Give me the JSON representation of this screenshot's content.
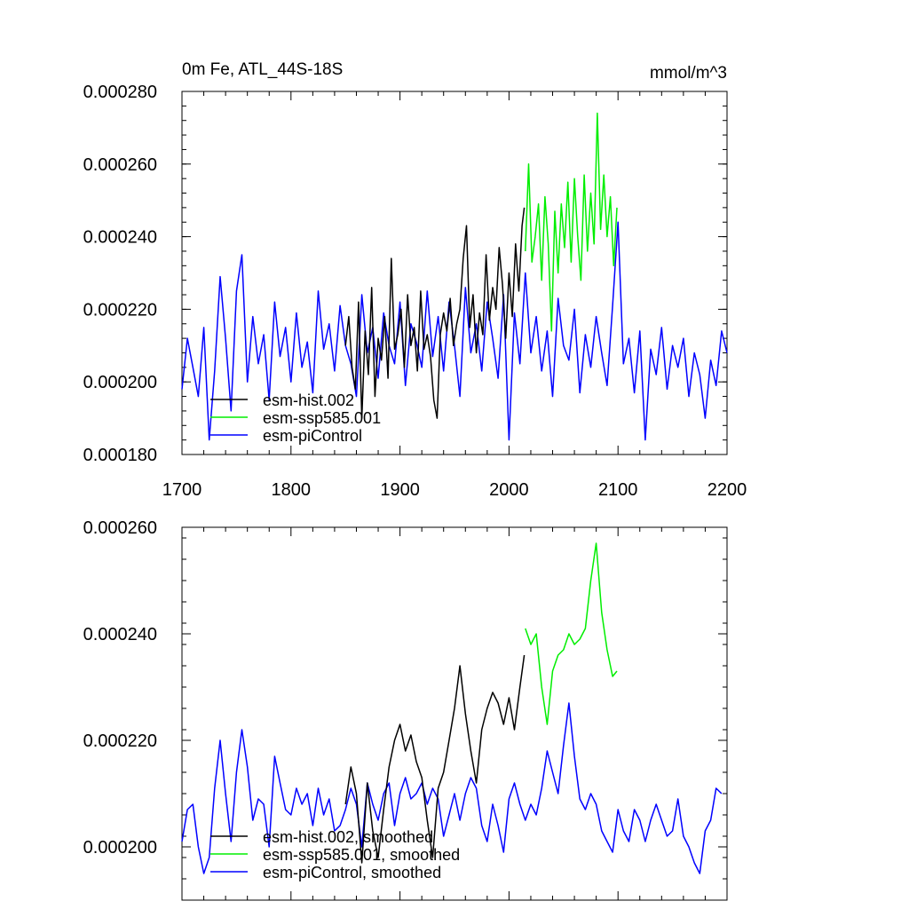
{
  "chart_data": [
    {
      "type": "line",
      "title": "0m Fe, ATL_44S-18S",
      "units": "mmol/m^3",
      "xlim": [
        1700,
        2200
      ],
      "ylim": [
        0.00018,
        0.00028
      ],
      "xticks": [
        "1700",
        "1800",
        "1900",
        "2000",
        "2100",
        "2200"
      ],
      "yticks": [
        "0.000180",
        "0.000200",
        "0.000220",
        "0.000240",
        "0.000260",
        "0.000280"
      ],
      "legend_position": "bottom-left",
      "series": [
        {
          "name": "esm-hist.002",
          "color": "#000000",
          "x": [
            1850,
            1853,
            1856,
            1859,
            1862,
            1865,
            1868,
            1871,
            1874,
            1877,
            1880,
            1883,
            1886,
            1889,
            1892,
            1895,
            1898,
            1901,
            1904,
            1907,
            1910,
            1913,
            1916,
            1919,
            1922,
            1925,
            1928,
            1931,
            1934,
            1937,
            1940,
            1943,
            1946,
            1949,
            1952,
            1955,
            1958,
            1961,
            1964,
            1967,
            1970,
            1973,
            1976,
            1979,
            1982,
            1985,
            1988,
            1991,
            1994,
            1997,
            2000,
            2003,
            2006,
            2009,
            2012,
            2014
          ],
          "values": [
            0.00021,
            0.000218,
            0.000204,
            0.000198,
            0.000222,
            0.00019,
            0.000214,
            0.000202,
            0.000226,
            0.000196,
            0.000212,
            0.000206,
            0.000218,
            0.000201,
            0.000234,
            0.000209,
            0.000213,
            0.00022,
            0.000204,
            0.000224,
            0.00021,
            0.000215,
            0.000203,
            0.000225,
            0.000209,
            0.000213,
            0.000207,
            0.000195,
            0.00019,
            0.000213,
            0.000219,
            0.000214,
            0.000223,
            0.00021,
            0.000216,
            0.00022,
            0.000234,
            0.000243,
            0.000215,
            0.000224,
            0.000208,
            0.000219,
            0.000213,
            0.000235,
            0.000217,
            0.000226,
            0.00022,
            0.000237,
            0.000227,
            0.000212,
            0.00023,
            0.000218,
            0.000238,
            0.000225,
            0.000243,
            0.000248
          ]
        },
        {
          "name": "esm-ssp585.001",
          "color": "#00ee00",
          "x": [
            2015,
            2018,
            2021,
            2024,
            2027,
            2030,
            2033,
            2036,
            2039,
            2042,
            2045,
            2048,
            2051,
            2054,
            2057,
            2060,
            2063,
            2066,
            2069,
            2072,
            2075,
            2078,
            2081,
            2084,
            2087,
            2090,
            2093,
            2096,
            2099
          ],
          "values": [
            0.000236,
            0.00026,
            0.000233,
            0.00024,
            0.000249,
            0.000228,
            0.000251,
            0.000238,
            0.000214,
            0.000247,
            0.00023,
            0.000249,
            0.000237,
            0.000255,
            0.000233,
            0.000256,
            0.00024,
            0.000228,
            0.000257,
            0.000236,
            0.000252,
            0.000238,
            0.000274,
            0.000242,
            0.000257,
            0.00024,
            0.000251,
            0.000232,
            0.000248
          ]
        },
        {
          "name": "esm-piControl",
          "color": "#0000ff",
          "x": [
            1700,
            1705,
            1710,
            1715,
            1720,
            1725,
            1730,
            1735,
            1740,
            1745,
            1750,
            1755,
            1760,
            1765,
            1770,
            1775,
            1780,
            1785,
            1790,
            1795,
            1800,
            1805,
            1810,
            1815,
            1820,
            1825,
            1830,
            1835,
            1840,
            1845,
            1850,
            1855,
            1860,
            1865,
            1870,
            1875,
            1880,
            1885,
            1890,
            1895,
            1900,
            1905,
            1910,
            1915,
            1920,
            1925,
            1930,
            1935,
            1940,
            1945,
            1950,
            1955,
            1960,
            1965,
            1970,
            1975,
            1980,
            1985,
            1990,
            1995,
            2000,
            2005,
            2010,
            2015,
            2020,
            2025,
            2030,
            2035,
            2040,
            2045,
            2050,
            2055,
            2060,
            2065,
            2070,
            2075,
            2080,
            2085,
            2090,
            2095,
            2100,
            2105,
            2110,
            2115,
            2120,
            2125,
            2130,
            2135,
            2140,
            2145,
            2150,
            2155,
            2160,
            2165,
            2170,
            2175,
            2180,
            2185,
            2190,
            2195,
            2200
          ],
          "values": [
            0.000198,
            0.000212,
            0.000204,
            0.000196,
            0.000215,
            0.000184,
            0.000203,
            0.000229,
            0.000212,
            0.000192,
            0.000225,
            0.000235,
            0.0002,
            0.000218,
            0.000205,
            0.000213,
            0.000195,
            0.000222,
            0.000207,
            0.000215,
            0.0002,
            0.000219,
            0.000204,
            0.000211,
            0.000197,
            0.000225,
            0.000209,
            0.000216,
            0.000203,
            0.000221,
            0.00021,
            0.000205,
            0.000196,
            0.000224,
            0.000208,
            0.000215,
            0.000201,
            0.000219,
            0.00021,
            0.000205,
            0.000222,
            0.000199,
            0.000216,
            0.000211,
            0.000204,
            0.000225,
            0.000207,
            0.000218,
            0.000203,
            0.000222,
            0.00021,
            0.000196,
            0.000226,
            0.000208,
            0.000216,
            0.000203,
            0.000222,
            0.000212,
            0.000201,
            0.000224,
            0.000184,
            0.000219,
            0.000205,
            0.00023,
            0.000208,
            0.000218,
            0.000203,
            0.000214,
            0.000196,
            0.000223,
            0.00021,
            0.000206,
            0.00022,
            0.000197,
            0.000213,
            0.000204,
            0.000218,
            0.000208,
            0.000199,
            0.000221,
            0.000244,
            0.000205,
            0.000212,
            0.000197,
            0.000214,
            0.000184,
            0.000209,
            0.000202,
            0.000215,
            0.000198,
            0.00021,
            0.000204,
            0.000212,
            0.000196,
            0.000208,
            0.000202,
            0.00019,
            0.000206,
            0.000199,
            0.000214,
            0.000208
          ]
        }
      ]
    },
    {
      "type": "line",
      "xlim": [
        1700,
        2200
      ],
      "ylim": [
        0.00019,
        0.00026
      ],
      "yticks": [
        "0.000200",
        "0.000220",
        "0.000240",
        "0.000260"
      ],
      "legend_position": "bottom-left",
      "series": [
        {
          "name": "esm-hist.002, smoothed",
          "color": "#000000",
          "x": [
            1850,
            1855,
            1860,
            1865,
            1870,
            1875,
            1880,
            1885,
            1890,
            1895,
            1900,
            1905,
            1910,
            1915,
            1920,
            1925,
            1930,
            1935,
            1940,
            1945,
            1950,
            1955,
            1960,
            1965,
            1970,
            1975,
            1980,
            1985,
            1990,
            1995,
            2000,
            2005,
            2010,
            2014
          ],
          "values": [
            0.000208,
            0.000215,
            0.00021,
            0.000197,
            0.000212,
            0.000203,
            0.000198,
            0.000207,
            0.000215,
            0.00022,
            0.000223,
            0.000218,
            0.000221,
            0.000216,
            0.000213,
            0.000205,
            0.000198,
            0.000211,
            0.000214,
            0.00022,
            0.000226,
            0.000234,
            0.000225,
            0.000218,
            0.000212,
            0.000222,
            0.000226,
            0.000229,
            0.000227,
            0.000223,
            0.000228,
            0.000222,
            0.00023,
            0.000236
          ]
        },
        {
          "name": "esm-ssp585.001, smoothed",
          "color": "#00ee00",
          "x": [
            2015,
            2020,
            2025,
            2030,
            2035,
            2040,
            2045,
            2050,
            2055,
            2060,
            2065,
            2070,
            2075,
            2080,
            2085,
            2090,
            2095,
            2099
          ],
          "values": [
            0.000241,
            0.000238,
            0.00024,
            0.00023,
            0.000223,
            0.000233,
            0.000236,
            0.000237,
            0.00024,
            0.000238,
            0.000239,
            0.000241,
            0.00025,
            0.000257,
            0.000244,
            0.000237,
            0.000232,
            0.000233
          ]
        },
        {
          "name": "esm-piControl, smoothed",
          "color": "#0000ff",
          "x": [
            1700,
            1705,
            1710,
            1715,
            1720,
            1725,
            1730,
            1735,
            1740,
            1745,
            1750,
            1755,
            1760,
            1765,
            1770,
            1775,
            1780,
            1785,
            1790,
            1795,
            1800,
            1805,
            1810,
            1815,
            1820,
            1825,
            1830,
            1835,
            1840,
            1845,
            1850,
            1855,
            1860,
            1865,
            1870,
            1875,
            1880,
            1885,
            1890,
            1895,
            1900,
            1905,
            1910,
            1915,
            1920,
            1925,
            1930,
            1935,
            1940,
            1945,
            1950,
            1955,
            1960,
            1965,
            1970,
            1975,
            1980,
            1985,
            1990,
            1995,
            2000,
            2005,
            2010,
            2015,
            2020,
            2025,
            2030,
            2035,
            2040,
            2045,
            2050,
            2055,
            2060,
            2065,
            2070,
            2075,
            2080,
            2085,
            2090,
            2095,
            2100,
            2105,
            2110,
            2115,
            2120,
            2125,
            2130,
            2135,
            2140,
            2145,
            2150,
            2155,
            2160,
            2165,
            2170,
            2175,
            2180,
            2185,
            2190,
            2195
          ],
          "values": [
            0.000201,
            0.000207,
            0.000208,
            0.0002,
            0.000195,
            0.000198,
            0.000211,
            0.00022,
            0.00021,
            0.000201,
            0.000214,
            0.000222,
            0.000215,
            0.000205,
            0.000209,
            0.000208,
            0.0002,
            0.000217,
            0.000212,
            0.000207,
            0.000206,
            0.000211,
            0.000208,
            0.00021,
            0.000204,
            0.000211,
            0.000206,
            0.000209,
            0.000203,
            0.000204,
            0.000207,
            0.000211,
            0.000208,
            0.0002,
            0.000212,
            0.000208,
            0.000205,
            0.00021,
            0.000212,
            0.000204,
            0.00021,
            0.000213,
            0.000209,
            0.00021,
            0.000212,
            0.000208,
            0.000211,
            0.000209,
            0.000202,
            0.000206,
            0.00021,
            0.000205,
            0.00021,
            0.000213,
            0.000211,
            0.000204,
            0.000201,
            0.000208,
            0.000204,
            0.000199,
            0.000209,
            0.000212,
            0.000208,
            0.000205,
            0.000208,
            0.000206,
            0.000211,
            0.000218,
            0.000214,
            0.00021,
            0.000219,
            0.000227,
            0.000217,
            0.000209,
            0.000207,
            0.00021,
            0.000208,
            0.000203,
            0.000201,
            0.000199,
            0.000207,
            0.000203,
            0.000201,
            0.000207,
            0.000205,
            0.000201,
            0.000205,
            0.000208,
            0.000205,
            0.000202,
            0.000203,
            0.000209,
            0.000202,
            0.0002,
            0.000197,
            0.000195,
            0.000203,
            0.000205,
            0.000211,
            0.00021
          ]
        }
      ]
    }
  ]
}
